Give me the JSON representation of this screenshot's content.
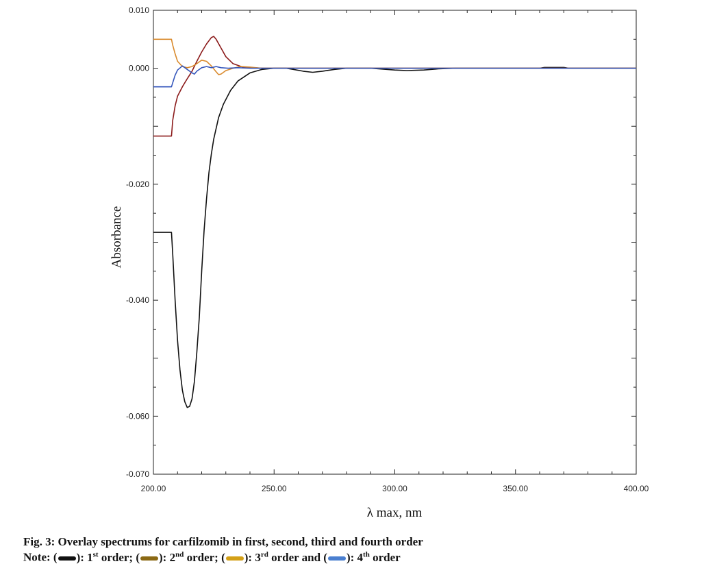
{
  "chart_data": {
    "type": "line",
    "xlabel": "λ max, nm",
    "ylabel": "Absorbance",
    "xlim": [
      200,
      400
    ],
    "ylim": [
      -0.07,
      0.01
    ],
    "x_ticks": [
      "200.00",
      "250.00",
      "300.00",
      "350.00",
      "400.00"
    ],
    "y_ticks": [
      {
        "value": 0.01,
        "label": "0.010"
      },
      {
        "value": 0.0,
        "label": "0.000"
      },
      {
        "value": -0.02,
        "label": "-0.020"
      },
      {
        "value": -0.04,
        "label": "-0.040"
      },
      {
        "value": -0.06,
        "label": "-0.060"
      },
      {
        "value": -0.07,
        "label": "-0.070"
      }
    ],
    "grid": false,
    "series": [
      {
        "color": "#111111",
        "points": [
          [
            200,
            -0.0283
          ],
          [
            207.5,
            -0.0283
          ],
          [
            208,
            -0.032
          ],
          [
            209,
            -0.04
          ],
          [
            210,
            -0.047
          ],
          [
            211,
            -0.052
          ],
          [
            212,
            -0.0555
          ],
          [
            213,
            -0.0575
          ],
          [
            214,
            -0.0585
          ],
          [
            215,
            -0.0583
          ],
          [
            216,
            -0.057
          ],
          [
            217,
            -0.054
          ],
          [
            218,
            -0.049
          ],
          [
            219,
            -0.043
          ],
          [
            220,
            -0.035
          ],
          [
            221,
            -0.028
          ],
          [
            222,
            -0.0225
          ],
          [
            223,
            -0.018
          ],
          [
            224,
            -0.0148
          ],
          [
            225,
            -0.0122
          ],
          [
            227,
            -0.0085
          ],
          [
            229,
            -0.0062
          ],
          [
            232,
            -0.0038
          ],
          [
            235,
            -0.0022
          ],
          [
            240,
            -0.0008
          ],
          [
            245,
            -0.0002
          ],
          [
            250,
            0.0
          ],
          [
            255,
            0.0
          ],
          [
            258,
            -0.0002
          ],
          [
            262,
            -0.0005
          ],
          [
            266,
            -0.0007
          ],
          [
            270,
            -0.0005
          ],
          [
            275,
            -0.0002
          ],
          [
            280,
            0.0
          ],
          [
            290,
            0.0
          ],
          [
            300,
            -0.0003
          ],
          [
            305,
            -0.0004
          ],
          [
            312,
            -0.0003
          ],
          [
            318,
            -0.0001
          ],
          [
            325,
            0.0
          ],
          [
            330,
            0.0
          ],
          [
            360,
            0.0
          ],
          [
            362,
            0.00015
          ],
          [
            370,
            0.00015
          ],
          [
            372,
            0.0
          ],
          [
            400,
            0.0
          ]
        ]
      },
      {
        "color": "#8B1A1A",
        "points": [
          [
            200,
            -0.0117
          ],
          [
            207.5,
            -0.0117
          ],
          [
            208,
            -0.009
          ],
          [
            209,
            -0.0065
          ],
          [
            210,
            -0.0048
          ],
          [
            212,
            -0.0032
          ],
          [
            214,
            -0.0018
          ],
          [
            216,
            -0.0005
          ],
          [
            218,
            0.0012
          ],
          [
            220,
            0.0028
          ],
          [
            222,
            0.0042
          ],
          [
            224,
            0.0053
          ],
          [
            225,
            0.0055
          ],
          [
            226,
            0.005
          ],
          [
            228,
            0.0035
          ],
          [
            230,
            0.002
          ],
          [
            233,
            0.0008
          ],
          [
            237,
            0.0002
          ],
          [
            245,
            0.0
          ],
          [
            250,
            0.0
          ],
          [
            400,
            0.0
          ]
        ]
      },
      {
        "color": "#D9892B",
        "points": [
          [
            200,
            0.005
          ],
          [
            207.5,
            0.005
          ],
          [
            208,
            0.004
          ],
          [
            209,
            0.0025
          ],
          [
            210,
            0.0012
          ],
          [
            212,
            0.0003
          ],
          [
            214,
            0.0001
          ],
          [
            216,
            0.0003
          ],
          [
            218,
            0.0008
          ],
          [
            220,
            0.0014
          ],
          [
            222,
            0.0012
          ],
          [
            224,
            0.0004
          ],
          [
            226,
            -0.0006
          ],
          [
            227,
            -0.0011
          ],
          [
            228,
            -0.001
          ],
          [
            230,
            -0.0004
          ],
          [
            233,
            0.0
          ],
          [
            236,
            0.0003
          ],
          [
            240,
            0.0002
          ],
          [
            245,
            0.0
          ],
          [
            400,
            0.0
          ]
        ]
      },
      {
        "color": "#3355BB",
        "points": [
          [
            200,
            -0.0032
          ],
          [
            207.5,
            -0.0032
          ],
          [
            208,
            -0.0025
          ],
          [
            209,
            -0.0012
          ],
          [
            210,
            -0.0003
          ],
          [
            212,
            0.0004
          ],
          [
            214,
            -0.0002
          ],
          [
            216,
            -0.0008
          ],
          [
            217,
            -0.001
          ],
          [
            218,
            -0.0005
          ],
          [
            220,
            0.0001
          ],
          [
            222,
            0.0003
          ],
          [
            224,
            0.0001
          ],
          [
            226,
            0.0003
          ],
          [
            228,
            0.0001
          ],
          [
            231,
            0.0
          ],
          [
            235,
            0.0001
          ],
          [
            240,
            0.0
          ],
          [
            400,
            0.0
          ]
        ]
      }
    ]
  },
  "caption": {
    "title": "Fig. 3: Overlay spectrums for carfilzomib in first, second, third and fourth order",
    "note_prefix": "Note: (",
    "notes": [
      {
        "color": "#111111",
        "num": "1",
        "sup": "st",
        "text": " order; ("
      },
      {
        "color": "#8B6914",
        "num": "2",
        "sup": "nd",
        "text": " order; ("
      },
      {
        "color": "#D4A017",
        "num": "3",
        "sup": "rd",
        "text": " order and ("
      },
      {
        "color": "#4A7FD0",
        "num": "4",
        "sup": "th",
        "text": " order"
      }
    ]
  }
}
